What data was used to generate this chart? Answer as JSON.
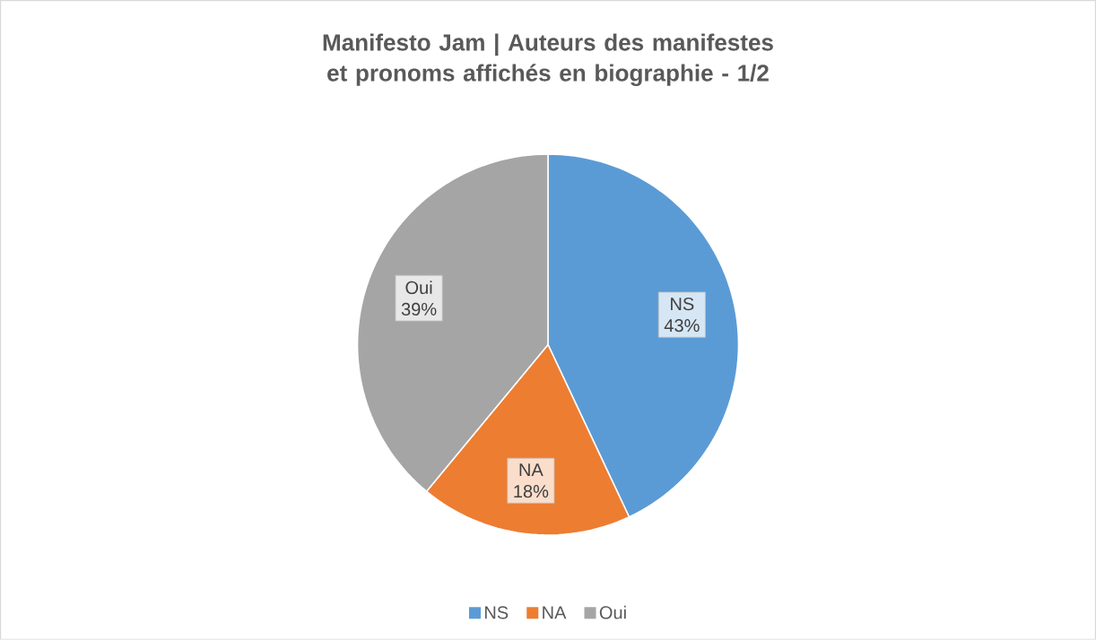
{
  "chart_data": {
    "type": "pie",
    "title": "Manifesto Jam | Auteurs des manifestes et pronoms affichés en biographie - 1/2",
    "categories": [
      "NS",
      "NA",
      "Oui"
    ],
    "values": [
      43,
      18,
      39
    ],
    "colors": [
      "#5b9bd5",
      "#ed7d31",
      "#a5a5a5"
    ],
    "value_labels": [
      "43%",
      "18%",
      "39%"
    ],
    "legend": "bottom"
  }
}
